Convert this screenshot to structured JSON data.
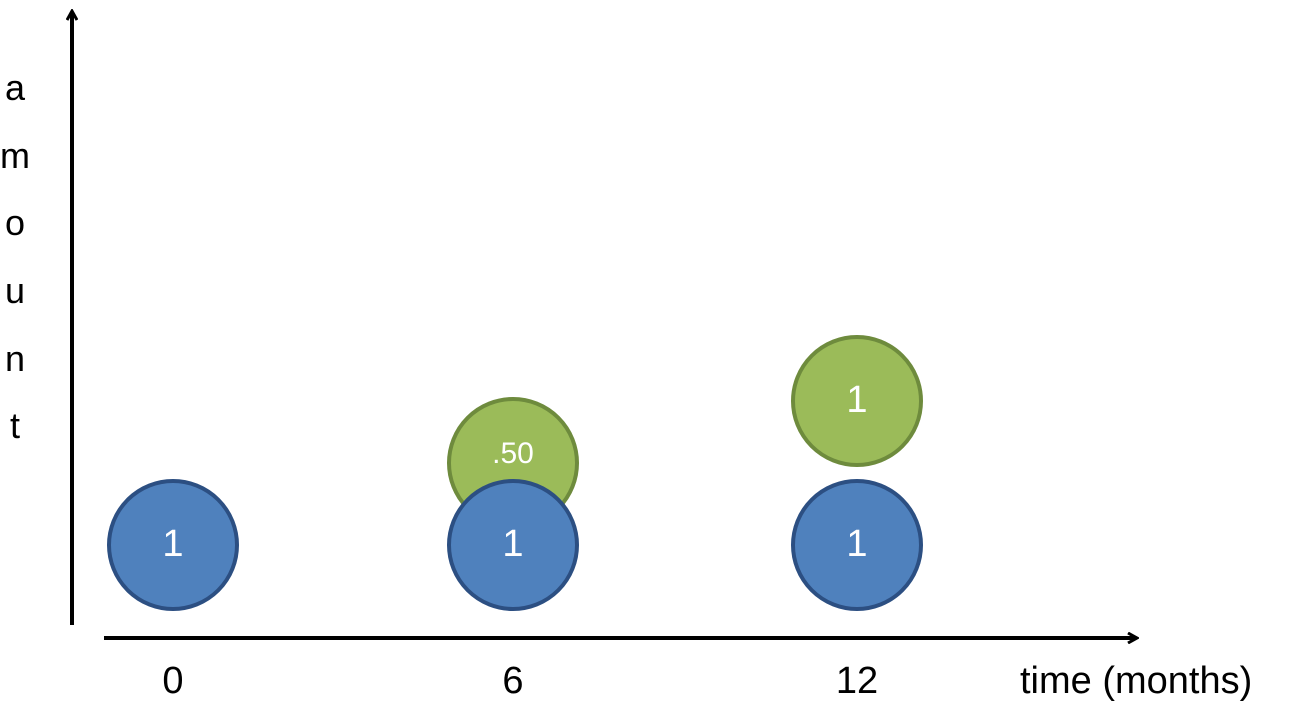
{
  "diagram": {
    "y_axis_label_letters": [
      "a",
      "m",
      "o",
      "u",
      "n",
      "t"
    ],
    "x_axis_title": "time (months)",
    "x_ticks": [
      "0",
      "6",
      "12"
    ],
    "circles": [
      {
        "id": "blue-0",
        "x_tick": "0",
        "layer": "base",
        "label": "1",
        "color": "blue"
      },
      {
        "id": "green-6",
        "x_tick": "6",
        "layer": "upper",
        "label": ".50",
        "color": "green"
      },
      {
        "id": "blue-6",
        "x_tick": "6",
        "layer": "base",
        "label": "1",
        "color": "blue"
      },
      {
        "id": "green-12",
        "x_tick": "12",
        "layer": "upper",
        "label": "1",
        "color": "green"
      },
      {
        "id": "blue-12",
        "x_tick": "12",
        "layer": "base",
        "label": "1",
        "color": "blue"
      }
    ],
    "colors": {
      "blue_fill": "#4F81BD",
      "blue_stroke": "#2C4F82",
      "green_fill": "#9BBB59",
      "green_stroke": "#6E8B3D",
      "axis": "#000000",
      "circle_text": "#ffffff"
    }
  }
}
